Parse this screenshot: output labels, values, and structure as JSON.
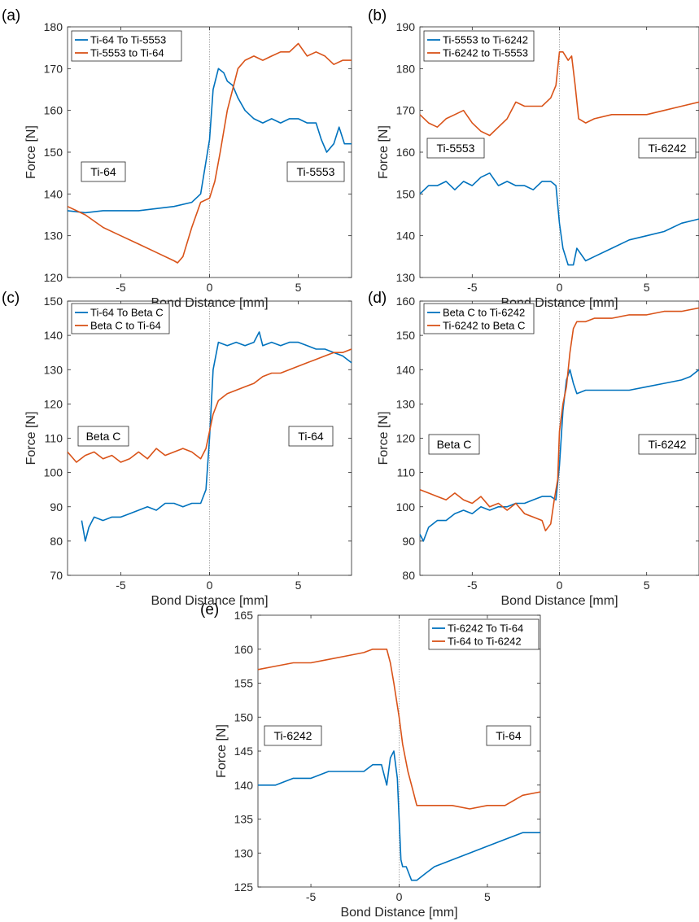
{
  "colors": {
    "blue": "#0072BD",
    "orange": "#D95319",
    "axis": "#262626",
    "zero_line": "#9a9a9a"
  },
  "chart_data": [
    {
      "panel": "(a)",
      "type": "line",
      "xlabel": "Bond Distance [mm]",
      "ylabel": "Force [N]",
      "xlim": [
        -8,
        8
      ],
      "ylim": [
        120,
        180
      ],
      "xticks": [
        -5,
        0,
        5
      ],
      "yticks": [
        120,
        130,
        140,
        150,
        160,
        170,
        180
      ],
      "legend_position": "top-left",
      "annotations": [
        "Ti-64",
        "Ti-5553"
      ],
      "series": [
        {
          "name": "Ti-64 To Ti-5553",
          "color": "#0072BD",
          "x": [
            -8,
            -7,
            -6,
            -5,
            -4,
            -3,
            -2,
            -1,
            -0.5,
            0,
            0.2,
            0.5,
            0.8,
            1,
            1.3,
            1.6,
            2,
            2.5,
            3,
            3.5,
            4,
            4.5,
            5,
            5.5,
            6,
            6.3,
            6.6,
            7,
            7.3,
            7.6,
            8
          ],
          "y": [
            136,
            135.5,
            136,
            136,
            136,
            136.5,
            137,
            138,
            140,
            153,
            165,
            170,
            169,
            167,
            166,
            163,
            160,
            158,
            157,
            158,
            157,
            158,
            158,
            157,
            157,
            153,
            150,
            152,
            156,
            152,
            152
          ]
        },
        {
          "name": "Ti-5553 to Ti-64",
          "color": "#D95319",
          "x": [
            -8,
            -7,
            -6,
            -5,
            -4,
            -3,
            -2,
            -1.8,
            -1.5,
            -1,
            -0.5,
            0,
            0.3,
            0.6,
            1,
            1.3,
            1.6,
            2,
            2.5,
            3,
            3.5,
            4,
            4.5,
            5,
            5.5,
            6,
            6.5,
            7,
            7.5,
            8
          ],
          "y": [
            137,
            135,
            132,
            130,
            128,
            126,
            124,
            123.5,
            125,
            132,
            138,
            139,
            143,
            150,
            160,
            165,
            170,
            172,
            173,
            172,
            173,
            174,
            174,
            176,
            173,
            174,
            173,
            171,
            172,
            172
          ]
        }
      ]
    },
    {
      "panel": "(b)",
      "type": "line",
      "xlabel": "Bond Distance [mm]",
      "ylabel": "Force [N]",
      "xlim": [
        -8,
        8
      ],
      "ylim": [
        130,
        190
      ],
      "xticks": [
        -5,
        0,
        5
      ],
      "yticks": [
        130,
        140,
        150,
        160,
        170,
        180,
        190
      ],
      "legend_position": "top-left",
      "annotations": [
        "Ti-5553",
        "Ti-6242"
      ],
      "series": [
        {
          "name": "Ti-5553 to Ti-6242",
          "color": "#0072BD",
          "x": [
            -8,
            -7.5,
            -7,
            -6.5,
            -6,
            -5.5,
            -5,
            -4.5,
            -4,
            -3.5,
            -3,
            -2.5,
            -2,
            -1.5,
            -1,
            -0.5,
            -0.2,
            0,
            0.2,
            0.5,
            0.8,
            1,
            1.5,
            2,
            3,
            4,
            5,
            6,
            7,
            8
          ],
          "y": [
            150,
            152,
            152,
            153,
            151,
            153,
            152,
            154,
            155,
            152,
            153,
            152,
            152,
            151,
            153,
            153,
            152,
            143,
            137,
            133,
            133,
            137,
            134,
            135,
            137,
            139,
            140,
            141,
            143,
            144
          ]
        },
        {
          "name": "Ti-6242 to Ti-5553",
          "color": "#D95319",
          "x": [
            -8,
            -7.5,
            -7,
            -6.5,
            -6,
            -5.5,
            -5,
            -4.5,
            -4,
            -3.5,
            -3,
            -2.5,
            -2,
            -1.5,
            -1,
            -0.5,
            -0.2,
            0,
            0.2,
            0.5,
            0.7,
            0.9,
            1.1,
            1.5,
            2,
            3,
            4,
            5,
            6,
            7,
            8
          ],
          "y": [
            169,
            167,
            166,
            168,
            169,
            170,
            167,
            165,
            164,
            166,
            168,
            172,
            171,
            171,
            171,
            173,
            176,
            184,
            184,
            182,
            183,
            176,
            168,
            167,
            168,
            169,
            169,
            169,
            170,
            171,
            172
          ]
        }
      ]
    },
    {
      "panel": "(c)",
      "type": "line",
      "xlabel": "Bond Distance [mm]",
      "ylabel": "Force [N]",
      "xlim": [
        -8,
        8
      ],
      "ylim": [
        70,
        150
      ],
      "xticks": [
        -5,
        0,
        5
      ],
      "yticks": [
        70,
        80,
        90,
        100,
        110,
        120,
        130,
        140,
        150
      ],
      "legend_position": "top-left",
      "annotations": [
        "Beta C",
        "Ti-64"
      ],
      "series": [
        {
          "name": "Ti-64 To Beta C",
          "color": "#0072BD",
          "x": [
            -7.2,
            -7,
            -6.8,
            -6.5,
            -6,
            -5.5,
            -5,
            -4.5,
            -4,
            -3.5,
            -3,
            -2.5,
            -2,
            -1.5,
            -1,
            -0.5,
            -0.2,
            0,
            0.2,
            0.5,
            1,
            1.5,
            2,
            2.5,
            2.8,
            3,
            3.5,
            4,
            4.5,
            5,
            5.5,
            6,
            6.5,
            7,
            7.5,
            8
          ],
          "y": [
            86,
            80,
            84,
            87,
            86,
            87,
            87,
            88,
            89,
            90,
            89,
            91,
            91,
            90,
            91,
            91,
            95,
            110,
            130,
            138,
            137,
            138,
            137,
            138,
            141,
            137,
            138,
            137,
            138,
            138,
            137,
            136,
            136,
            135,
            134,
            132
          ]
        },
        {
          "name": "Beta C to Ti-64",
          "color": "#D95319",
          "x": [
            -8,
            -7.5,
            -7,
            -6.5,
            -6,
            -5.5,
            -5,
            -4.5,
            -4,
            -3.5,
            -3,
            -2.5,
            -2,
            -1.5,
            -1,
            -0.5,
            -0.2,
            0,
            0.2,
            0.5,
            1,
            1.5,
            2,
            2.5,
            3,
            3.5,
            4,
            4.5,
            5,
            5.5,
            6,
            6.5,
            7,
            7.5,
            8
          ],
          "y": [
            106,
            103,
            105,
            106,
            104,
            105,
            103,
            104,
            106,
            104,
            107,
            105,
            106,
            107,
            106,
            104,
            107,
            112,
            117,
            121,
            123,
            124,
            125,
            126,
            128,
            129,
            129,
            130,
            131,
            132,
            133,
            134,
            135,
            135,
            136
          ]
        }
      ]
    },
    {
      "panel": "(d)",
      "type": "line",
      "xlabel": "Bond Distance [mm]",
      "ylabel": "Force [N]",
      "xlim": [
        -8,
        8
      ],
      "ylim": [
        80,
        160
      ],
      "xticks": [
        -5,
        0,
        5
      ],
      "yticks": [
        80,
        90,
        100,
        110,
        120,
        130,
        140,
        150,
        160
      ],
      "legend_position": "top-left",
      "annotations": [
        "Beta C",
        "Ti-6242"
      ],
      "series": [
        {
          "name": "Beta C to Ti-6242",
          "color": "#0072BD",
          "x": [
            -8,
            -7.8,
            -7.5,
            -7,
            -6.5,
            -6,
            -5.5,
            -5,
            -4.5,
            -4,
            -3.5,
            -3,
            -2.5,
            -2,
            -1.5,
            -1,
            -0.5,
            -0.2,
            0,
            0.2,
            0.4,
            0.6,
            0.8,
            1,
            1.5,
            2,
            3,
            4,
            5,
            6,
            7,
            7.5,
            8
          ],
          "y": [
            92,
            90,
            94,
            96,
            96,
            98,
            99,
            98,
            100,
            99,
            100,
            100,
            101,
            101,
            102,
            103,
            103,
            102,
            112,
            128,
            137,
            140,
            136,
            133,
            134,
            134,
            134,
            134,
            135,
            136,
            137,
            138,
            140
          ]
        },
        {
          "name": "Ti-6242 to Beta C",
          "color": "#D95319",
          "x": [
            -8,
            -7.5,
            -7,
            -6.5,
            -6,
            -5.5,
            -5,
            -4.5,
            -4,
            -3.5,
            -3,
            -2.5,
            -2,
            -1.5,
            -1,
            -0.8,
            -0.5,
            -0.3,
            -0.1,
            0,
            0.2,
            0.4,
            0.6,
            0.8,
            1,
            1.5,
            2,
            3,
            4,
            5,
            6,
            7,
            8
          ],
          "y": [
            105,
            104,
            103,
            102,
            104,
            102,
            101,
            103,
            100,
            101,
            99,
            101,
            98,
            97,
            96,
            93,
            95,
            102,
            108,
            122,
            130,
            135,
            145,
            152,
            154,
            154,
            155,
            155,
            156,
            156,
            157,
            157,
            158
          ]
        }
      ]
    },
    {
      "panel": "(e)",
      "type": "line",
      "xlabel": "Bond Distance [mm]",
      "ylabel": "Force [N]",
      "xlim": [
        -8,
        8
      ],
      "ylim": [
        125,
        165
      ],
      "xticks": [
        -5,
        0,
        5
      ],
      "yticks": [
        125,
        130,
        135,
        140,
        145,
        150,
        155,
        160,
        165
      ],
      "legend_position": "top-right",
      "annotations": [
        "Ti-6242",
        "Ti-64"
      ],
      "series": [
        {
          "name": "Ti-6242 To Ti-64",
          "color": "#0072BD",
          "x": [
            -8,
            -7,
            -6,
            -5,
            -4,
            -3,
            -2,
            -1.5,
            -1,
            -0.7,
            -0.5,
            -0.3,
            -0.1,
            0,
            0.1,
            0.2,
            0.4,
            0.7,
            1,
            1.5,
            2,
            3,
            4,
            5,
            6,
            7,
            8
          ],
          "y": [
            140,
            140,
            141,
            141,
            142,
            142,
            142,
            143,
            143,
            140,
            144,
            145,
            141,
            135,
            129,
            128,
            128,
            126,
            126,
            127,
            128,
            129,
            130,
            131,
            132,
            133,
            133
          ]
        },
        {
          "name": "Ti-64 to Ti-6242",
          "color": "#D95319",
          "x": [
            -8,
            -7,
            -6,
            -5,
            -4,
            -3,
            -2,
            -1.5,
            -1,
            -0.7,
            -0.5,
            -0.3,
            0,
            0.2,
            0.5,
            0.8,
            1,
            1.5,
            2,
            3,
            4,
            5,
            6,
            7,
            8
          ],
          "y": [
            157,
            157.5,
            158,
            158,
            158.5,
            159,
            159.5,
            160,
            160,
            160,
            158,
            155,
            150,
            146,
            142,
            139,
            137,
            137,
            137,
            137,
            136.5,
            137,
            137,
            138.5,
            139
          ]
        }
      ]
    }
  ]
}
